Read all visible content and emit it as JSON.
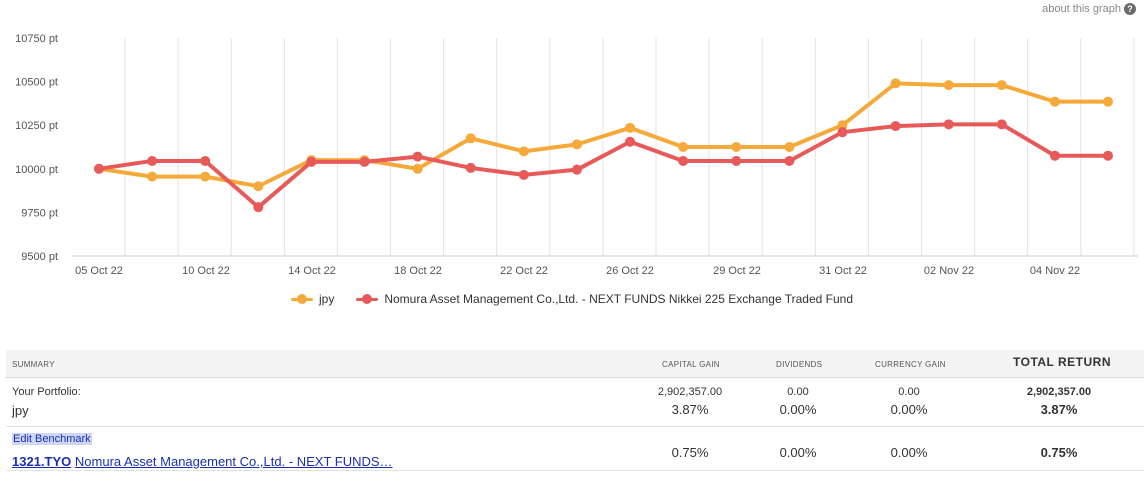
{
  "about_link": "about this graph",
  "help_glyph": "?",
  "chart_data": {
    "type": "line",
    "title": "",
    "xlabel": "",
    "ylabel": "",
    "ylim": [
      9500,
      10750
    ],
    "y_ticks": [
      9500,
      9750,
      10000,
      10250,
      10500,
      10750
    ],
    "y_tick_labels": [
      "9500 pt",
      "9750 pt",
      "10000 pt",
      "10250 pt",
      "10500 pt",
      "10750 pt"
    ],
    "x_tick_labels": [
      "05 Oct 22",
      "10 Oct 22",
      "14 Oct 22",
      "18 Oct 22",
      "22 Oct 22",
      "26 Oct 22",
      "29 Oct 22",
      "31 Oct 22",
      "02 Nov 22",
      "04 Nov 22"
    ],
    "grid": true,
    "legend": "bottom",
    "series": [
      {
        "name": "jpy",
        "color": "#f5a93a",
        "values": [
          10000,
          9955,
          9955,
          9900,
          10050,
          10050,
          10000,
          10175,
          10100,
          10140,
          10235,
          10125,
          10125,
          10125,
          10250,
          10490,
          10480,
          10480,
          10385,
          10385
        ]
      },
      {
        "name": "Nomura Asset Management Co.,Ltd. - NEXT FUNDS Nikkei 225 Exchange Traded Fund",
        "color": "#e85a5a",
        "values": [
          10000,
          10045,
          10045,
          9780,
          10040,
          10040,
          10070,
          10005,
          9965,
          9995,
          10155,
          10045,
          10045,
          10045,
          10210,
          10245,
          10255,
          10255,
          10075,
          10075
        ]
      }
    ]
  },
  "table": {
    "headers": {
      "summary": "SUMMARY",
      "capital_gain": "CAPITAL GAIN",
      "dividends": "DIVIDENDS",
      "currency_gain": "CURRENCY GAIN",
      "total_return": "TOTAL RETURN"
    },
    "portfolio": {
      "label": "Your Portfolio:",
      "name": "jpy",
      "capital_gain_amount": "2,902,357.00",
      "capital_gain_pct": "3.87%",
      "dividends_amount": "0.00",
      "dividends_pct": "0.00%",
      "currency_gain_amount": "0.00",
      "currency_gain_pct": "0.00%",
      "total_amount": "2,902,357.00",
      "total_pct": "3.87%"
    },
    "benchmark": {
      "edit_label": "Edit Benchmark",
      "ticker": "1321.TYO",
      "name": "Nomura Asset Management Co.,Ltd. - NEXT FUNDS…",
      "capital_gain_pct": "0.75%",
      "dividends_pct": "0.00%",
      "currency_gain_pct": "0.00%",
      "total_pct": "0.75%"
    }
  }
}
